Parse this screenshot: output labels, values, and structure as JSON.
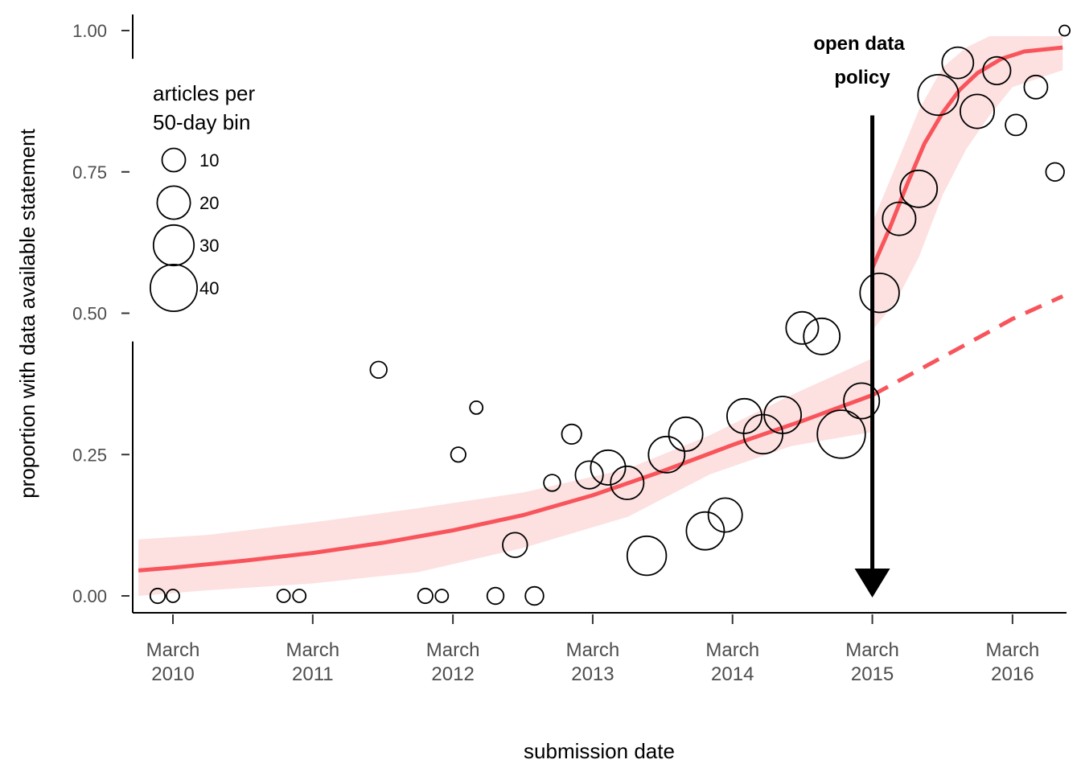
{
  "chart_data": {
    "type": "scatter",
    "xlabel": "submission date",
    "ylabel": "proportion with data available statement",
    "xlim": [
      "2009-11-16",
      "2016-07-20"
    ],
    "ylim": [
      0,
      1.0
    ],
    "x_ticks": [
      {
        "date": "2010-03-01",
        "line1": "March",
        "line2": "2010"
      },
      {
        "date": "2011-03-01",
        "line1": "March",
        "line2": "2011"
      },
      {
        "date": "2012-03-01",
        "line1": "March",
        "line2": "2012"
      },
      {
        "date": "2013-03-01",
        "line1": "March",
        "line2": "2013"
      },
      {
        "date": "2014-03-01",
        "line1": "March",
        "line2": "2014"
      },
      {
        "date": "2015-03-01",
        "line1": "March",
        "line2": "2015"
      },
      {
        "date": "2016-03-01",
        "line1": "March",
        "line2": "2016"
      }
    ],
    "y_ticks": [
      {
        "value": 0,
        "label": "0.00"
      },
      {
        "value": 0.25,
        "label": "0.25"
      },
      {
        "value": 0.5,
        "label": "0.50"
      },
      {
        "value": 0.75,
        "label": "0.75"
      },
      {
        "value": 1.0,
        "label": "1.00"
      }
    ],
    "legend": {
      "title_line1": "articles per",
      "title_line2": "50-day bin",
      "placement": "top-left",
      "items": [
        {
          "n": 10,
          "label": "10"
        },
        {
          "n": 20,
          "label": "20"
        },
        {
          "n": 30,
          "label": "30"
        },
        {
          "n": 40,
          "label": "40"
        }
      ]
    },
    "annotation": {
      "line1": "open data",
      "line2": "policy",
      "date": "2015-03-01",
      "arrow_from_y": 0.85,
      "arrow_to_y": 0.0
    },
    "points": [
      {
        "x": "2010-01-20",
        "y": 0.0,
        "n": 4
      },
      {
        "x": "2010-03-01",
        "y": 0.0,
        "n": 3
      },
      {
        "x": "2010-12-15",
        "y": 0.0,
        "n": 3
      },
      {
        "x": "2011-01-25",
        "y": 0.0,
        "n": 3
      },
      {
        "x": "2011-08-20",
        "y": 0.4,
        "n": 5
      },
      {
        "x": "2011-12-20",
        "y": 0.0,
        "n": 4
      },
      {
        "x": "2012-02-01",
        "y": 0.0,
        "n": 3
      },
      {
        "x": "2012-03-15",
        "y": 0.25,
        "n": 4
      },
      {
        "x": "2012-05-01",
        "y": 0.333,
        "n": 3
      },
      {
        "x": "2012-06-20",
        "y": 0.0,
        "n": 5
      },
      {
        "x": "2012-08-10",
        "y": 0.09,
        "n": 11
      },
      {
        "x": "2012-09-30",
        "y": 0.0,
        "n": 6
      },
      {
        "x": "2012-11-15",
        "y": 0.2,
        "n": 5
      },
      {
        "x": "2013-01-05",
        "y": 0.286,
        "n": 7
      },
      {
        "x": "2013-02-20",
        "y": 0.214,
        "n": 14
      },
      {
        "x": "2013-04-10",
        "y": 0.227,
        "n": 22
      },
      {
        "x": "2013-05-30",
        "y": 0.2,
        "n": 20
      },
      {
        "x": "2013-07-20",
        "y": 0.071,
        "n": 28
      },
      {
        "x": "2013-09-10",
        "y": 0.25,
        "n": 24
      },
      {
        "x": "2013-10-30",
        "y": 0.286,
        "n": 21
      },
      {
        "x": "2013-12-20",
        "y": 0.115,
        "n": 26
      },
      {
        "x": "2014-02-10",
        "y": 0.143,
        "n": 21
      },
      {
        "x": "2014-04-01",
        "y": 0.318,
        "n": 22
      },
      {
        "x": "2014-05-20",
        "y": 0.286,
        "n": 28
      },
      {
        "x": "2014-07-10",
        "y": 0.32,
        "n": 25
      },
      {
        "x": "2014-08-30",
        "y": 0.474,
        "n": 19
      },
      {
        "x": "2014-10-20",
        "y": 0.459,
        "n": 24
      },
      {
        "x": "2014-12-10",
        "y": 0.286,
        "n": 42
      },
      {
        "x": "2015-02-01",
        "y": 0.345,
        "n": 23
      },
      {
        "x": "2015-03-20",
        "y": 0.536,
        "n": 28
      },
      {
        "x": "2015-05-10",
        "y": 0.667,
        "n": 20
      },
      {
        "x": "2015-06-30",
        "y": 0.72,
        "n": 25
      },
      {
        "x": "2015-08-20",
        "y": 0.886,
        "n": 30
      },
      {
        "x": "2015-10-10",
        "y": 0.943,
        "n": 18
      },
      {
        "x": "2015-11-30",
        "y": 0.857,
        "n": 21
      },
      {
        "x": "2016-01-20",
        "y": 0.929,
        "n": 14
      },
      {
        "x": "2016-03-10",
        "y": 0.833,
        "n": 8
      },
      {
        "x": "2016-05-01",
        "y": 0.9,
        "n": 10
      },
      {
        "x": "2016-06-20",
        "y": 0.75,
        "n": 6
      },
      {
        "x": "2016-07-15",
        "y": 1.0,
        "n": 2
      }
    ],
    "fits": [
      {
        "style": "solid",
        "color": "#f8545b",
        "points": [
          {
            "x": "2009-12-01",
            "y": 0.045
          },
          {
            "x": "2010-03-01",
            "y": 0.05
          },
          {
            "x": "2010-09-01",
            "y": 0.062
          },
          {
            "x": "2011-03-01",
            "y": 0.076
          },
          {
            "x": "2011-09-01",
            "y": 0.094
          },
          {
            "x": "2012-03-01",
            "y": 0.116
          },
          {
            "x": "2012-09-01",
            "y": 0.143
          },
          {
            "x": "2013-03-01",
            "y": 0.178
          },
          {
            "x": "2013-09-01",
            "y": 0.221
          },
          {
            "x": "2014-03-01",
            "y": 0.267
          },
          {
            "x": "2014-09-01",
            "y": 0.31
          },
          {
            "x": "2015-03-01",
            "y": 0.355
          }
        ]
      },
      {
        "style": "dashed",
        "color": "#f8545b",
        "points": [
          {
            "x": "2015-03-01",
            "y": 0.355
          },
          {
            "x": "2015-07-01",
            "y": 0.4
          },
          {
            "x": "2015-11-01",
            "y": 0.445
          },
          {
            "x": "2016-03-01",
            "y": 0.49
          },
          {
            "x": "2016-07-10",
            "y": 0.53
          }
        ]
      },
      {
        "style": "solid",
        "color": "#f8545b",
        "points": [
          {
            "x": "2015-03-01",
            "y": 0.58
          },
          {
            "x": "2015-04-15",
            "y": 0.65
          },
          {
            "x": "2015-06-01",
            "y": 0.73
          },
          {
            "x": "2015-07-15",
            "y": 0.8
          },
          {
            "x": "2015-09-01",
            "y": 0.855
          },
          {
            "x": "2015-10-15",
            "y": 0.895
          },
          {
            "x": "2015-12-01",
            "y": 0.925
          },
          {
            "x": "2016-02-01",
            "y": 0.95
          },
          {
            "x": "2016-04-01",
            "y": 0.963
          },
          {
            "x": "2016-07-10",
            "y": 0.97
          }
        ]
      }
    ],
    "bands": [
      {
        "color": "#fde0e0",
        "x": [
          "2009-12-01",
          "2010-06-01",
          "2011-03-01",
          "2011-12-01",
          "2012-09-01",
          "2013-06-01",
          "2014-01-01",
          "2014-08-01",
          "2015-03-01"
        ],
        "upper": [
          0.1,
          0.108,
          0.13,
          0.155,
          0.183,
          0.225,
          0.284,
          0.355,
          0.42
        ],
        "lower": [
          0.0,
          0.01,
          0.022,
          0.042,
          0.085,
          0.14,
          0.215,
          0.265,
          0.29
        ]
      },
      {
        "color": "#fde0e0",
        "x": [
          "2015-03-01",
          "2015-05-01",
          "2015-07-01",
          "2015-09-01",
          "2015-11-01",
          "2016-01-01",
          "2016-03-01",
          "2016-07-10"
        ],
        "upper": [
          0.66,
          0.76,
          0.86,
          0.935,
          0.97,
          0.99,
          0.99,
          0.99
        ],
        "lower": [
          0.47,
          0.52,
          0.6,
          0.71,
          0.79,
          0.85,
          0.9,
          0.93
        ]
      }
    ]
  }
}
